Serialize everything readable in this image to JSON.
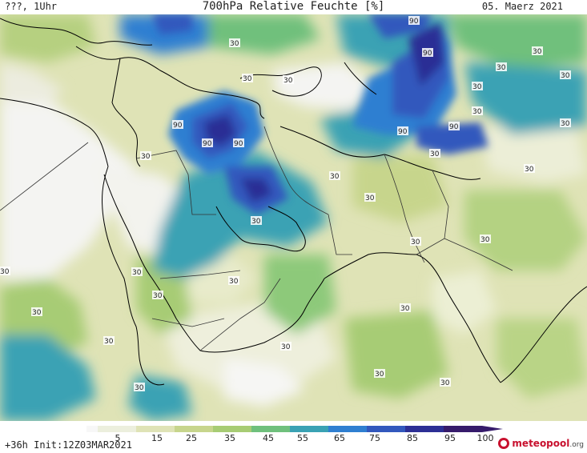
{
  "header": {
    "left_label": "???, 1Uhr",
    "title": "700hPa Relative Feuchte [%]",
    "date": "05. Maerz 2021"
  },
  "map": {
    "contour_labels": [
      {
        "v": "90"
      },
      {
        "v": "90"
      },
      {
        "v": "90"
      },
      {
        "v": "90"
      },
      {
        "v": "90"
      },
      {
        "v": "90"
      },
      {
        "v": "90"
      },
      {
        "v": "30"
      },
      {
        "v": "30"
      },
      {
        "v": "30"
      },
      {
        "v": "30"
      },
      {
        "v": "30"
      },
      {
        "v": "30"
      },
      {
        "v": "30"
      },
      {
        "v": "30"
      },
      {
        "v": "30"
      },
      {
        "v": "30"
      },
      {
        "v": "30"
      },
      {
        "v": "30"
      },
      {
        "v": "30"
      },
      {
        "v": "30"
      },
      {
        "v": "30"
      },
      {
        "v": "30"
      },
      {
        "v": "30"
      },
      {
        "v": "30"
      },
      {
        "v": "30"
      },
      {
        "v": "30"
      },
      {
        "v": "30"
      },
      {
        "v": "30"
      },
      {
        "v": "30"
      },
      {
        "v": "30"
      },
      {
        "v": "30"
      },
      {
        "v": "30"
      },
      {
        "v": "30"
      },
      {
        "v": "30"
      }
    ]
  },
  "colorbar": {
    "ticks": [
      "5",
      "15",
      "25",
      "35",
      "45",
      "55",
      "65",
      "75",
      "85",
      "95",
      "100"
    ],
    "colors": [
      "#f7f7f7",
      "#ecefdd",
      "#dfe3b6",
      "#c7d58c",
      "#a7cc74",
      "#6fc07c",
      "#3aa2b4",
      "#2f7fd1",
      "#3258bd",
      "#2c2f95",
      "#361b6b"
    ]
  },
  "footer": {
    "init": "+36h Init:12Z03MAR2021",
    "logo_main": "meteopool",
    "logo_org": ".org"
  }
}
